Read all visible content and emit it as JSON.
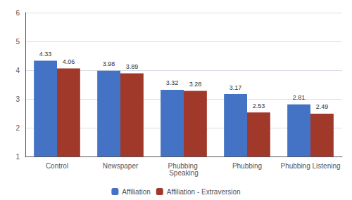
{
  "chart_data": {
    "type": "bar",
    "categories": [
      "Control",
      "Newspaper",
      "Phubbing Speaking",
      "Phubbing",
      "Phubbing Listening"
    ],
    "series": [
      {
        "name": "Affiliation",
        "color": "#4472C4",
        "values": [
          4.33,
          3.98,
          3.32,
          3.17,
          2.81
        ]
      },
      {
        "name": "Affiliation - Extraversion",
        "color": "#A0392A",
        "values": [
          4.06,
          3.89,
          3.28,
          2.53,
          2.49
        ]
      }
    ],
    "ylim": [
      1,
      6
    ],
    "yticks": [
      1,
      2,
      3,
      4,
      5,
      6
    ],
    "grid": true,
    "legend": "bottom",
    "data_labels": true
  }
}
